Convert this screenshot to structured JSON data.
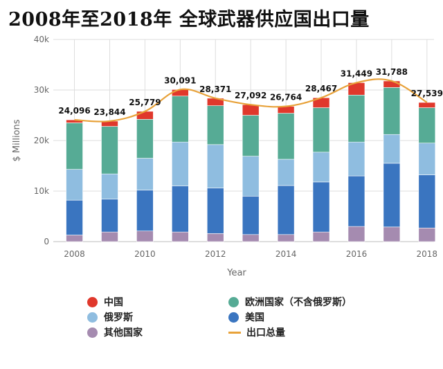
{
  "title": "2008年至2018年 全球武器供应国出口量",
  "chart_data": {
    "type": "bar",
    "stacked": true,
    "xlabel": "Year",
    "ylabel": "$ Millions",
    "ylim": [
      0,
      40000
    ],
    "yticks": [
      0,
      10000,
      20000,
      30000,
      40000
    ],
    "ytick_labels": [
      "0",
      "10k",
      "20k",
      "30k",
      "40k"
    ],
    "x": [
      2008,
      2009,
      2010,
      2011,
      2012,
      2013,
      2014,
      2015,
      2016,
      2017,
      2018
    ],
    "xticks": [
      2008,
      2010,
      2012,
      2014,
      2016,
      2018
    ],
    "xtick_labels": [
      "2008",
      "2010",
      "2012",
      "2014",
      "2016",
      "2018"
    ],
    "grid": true,
    "legend_position": "bottom",
    "series": [
      {
        "name": "其他国家",
        "color": "#a58bb0",
        "values": [
          1300,
          1900,
          2100,
          1900,
          1600,
          1400,
          1400,
          1900,
          3000,
          2900,
          2700
        ]
      },
      {
        "name": "美国",
        "color": "#3a75c0",
        "values": [
          6900,
          6500,
          8100,
          9100,
          9000,
          7600,
          9700,
          9900,
          10000,
          12600,
          10500
        ]
      },
      {
        "name": "俄罗斯",
        "color": "#8fbde0",
        "values": [
          6100,
          5000,
          6300,
          8700,
          8600,
          7900,
          5200,
          5900,
          6700,
          5700,
          6300
        ]
      },
      {
        "name": "欧洲国家（不含俄罗斯）",
        "color": "#56ab95",
        "values": [
          9200,
          9400,
          7700,
          9100,
          7700,
          8100,
          9100,
          8800,
          9300,
          9300,
          7000
        ]
      },
      {
        "name": "中国",
        "color": "#e0382c",
        "values": [
          596,
          1044,
          1579,
          1291,
          1471,
          2092,
          1364,
          1967,
          2449,
          1288,
          1039
        ]
      }
    ],
    "line": {
      "name": "出口总量",
      "color": "#e8a23a",
      "values": [
        24096,
        23844,
        25779,
        30091,
        28371,
        27092,
        26764,
        28467,
        31449,
        31788,
        27539
      ]
    },
    "data_labels": [
      "24,096",
      "23,844",
      "25,779",
      "30,091",
      "28,371",
      "27,092",
      "26,764",
      "28,467",
      "31,449",
      "31,788",
      "27,539"
    ]
  },
  "legend": [
    {
      "label": "中国",
      "color": "#e0382c",
      "kind": "dot"
    },
    {
      "label": "欧洲国家（不含俄罗斯）",
      "color": "#56ab95",
      "kind": "dot"
    },
    {
      "label": "俄罗斯",
      "color": "#8fbde0",
      "kind": "dot"
    },
    {
      "label": "美国",
      "color": "#3a75c0",
      "kind": "dot"
    },
    {
      "label": "其他国家",
      "color": "#a58bb0",
      "kind": "dot"
    },
    {
      "label": "出口总量",
      "color": "#e8a23a",
      "kind": "line"
    }
  ]
}
